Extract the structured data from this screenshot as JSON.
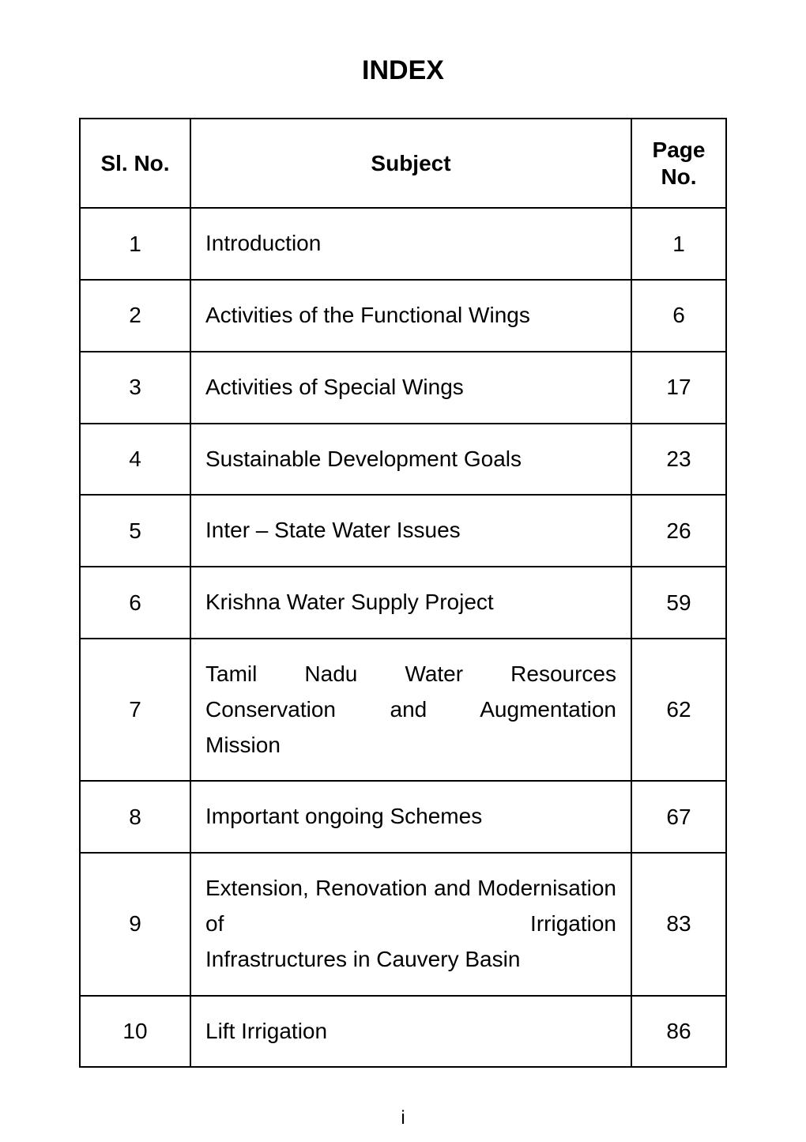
{
  "title": "INDEX",
  "columns": {
    "sl": "Sl. No.",
    "subject": "Subject",
    "page": "Page No."
  },
  "rows": [
    {
      "sl": "1",
      "subject": "Introduction",
      "page": "1",
      "multiline": false
    },
    {
      "sl": "2",
      "subject": "Activities of the Functional Wings",
      "page": "6",
      "multiline": false
    },
    {
      "sl": "3",
      "subject": "Activities of Special Wings",
      "page": "17",
      "multiline": false
    },
    {
      "sl": "4",
      "subject": "Sustainable Development Goals",
      "page": "23",
      "multiline": false
    },
    {
      "sl": "5",
      "subject": "Inter – State Water Issues",
      "page": "26",
      "multiline": false
    },
    {
      "sl": "6",
      "subject": "Krishna Water Supply Project",
      "page": "59",
      "multiline": false
    },
    {
      "sl": "7",
      "subject_lines": [
        "Tamil Nadu Water Resources Conservation and Augmentation",
        "Mission"
      ],
      "page": "62",
      "multiline": true
    },
    {
      "sl": "8",
      "subject": "Important ongoing Schemes",
      "page": "67",
      "multiline": false
    },
    {
      "sl": "9",
      "subject_lines": [
        "Extension, Renovation and Modernisation of Irrigation",
        "Infrastructures in Cauvery Basin"
      ],
      "page": "83",
      "multiline": true
    },
    {
      "sl": "10",
      "subject": "Lift Irrigation",
      "page": "86",
      "multiline": false
    }
  ],
  "footer": "i",
  "style": {
    "background_color": "#ffffff",
    "text_color": "#000000",
    "border_color": "#000000",
    "title_fontsize": 34,
    "cell_fontsize": 28,
    "footer_fontsize": 24,
    "col_sl_width": 140,
    "col_page_width": 120
  }
}
